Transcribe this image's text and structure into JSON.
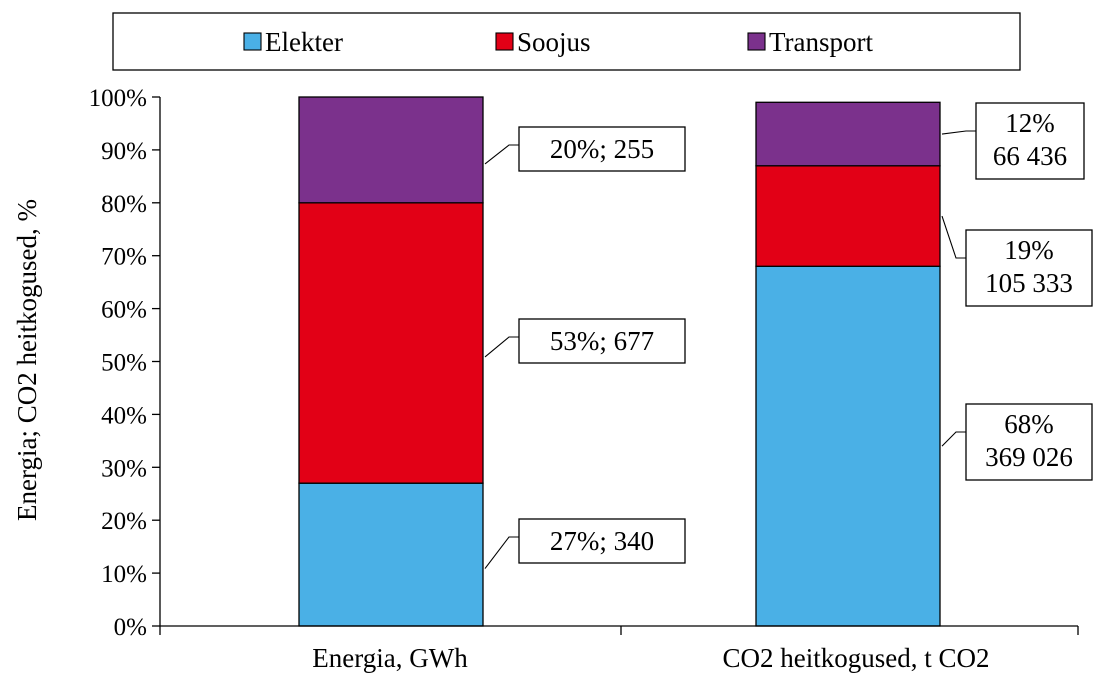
{
  "chart_data": {
    "type": "bar",
    "stacked": "percent",
    "title": "",
    "xlabel": "",
    "ylabel": "Energia; CO2 heitkogused, %",
    "ylim": [
      0,
      100
    ],
    "yticks": [
      "0%",
      "10%",
      "20%",
      "30%",
      "40%",
      "50%",
      "60%",
      "70%",
      "80%",
      "90%",
      "100%"
    ],
    "categories": [
      "Energia, GWh",
      "CO2 heitkogused, t CO2"
    ],
    "legend_position": "top",
    "series": [
      {
        "name": "Elekter",
        "color": "#4ab0e6",
        "values": [
          27,
          68
        ],
        "labels": [
          "27%;  340",
          "68%\n369 026"
        ]
      },
      {
        "name": "Soojus",
        "color": "#e20016",
        "values": [
          53,
          19
        ],
        "labels": [
          "53%;  677",
          "19%\n105 333"
        ]
      },
      {
        "name": "Transport",
        "color": "#7b318c",
        "values": [
          20,
          12
        ],
        "labels": [
          "20%;  255",
          "12%\n66 436"
        ]
      }
    ]
  }
}
